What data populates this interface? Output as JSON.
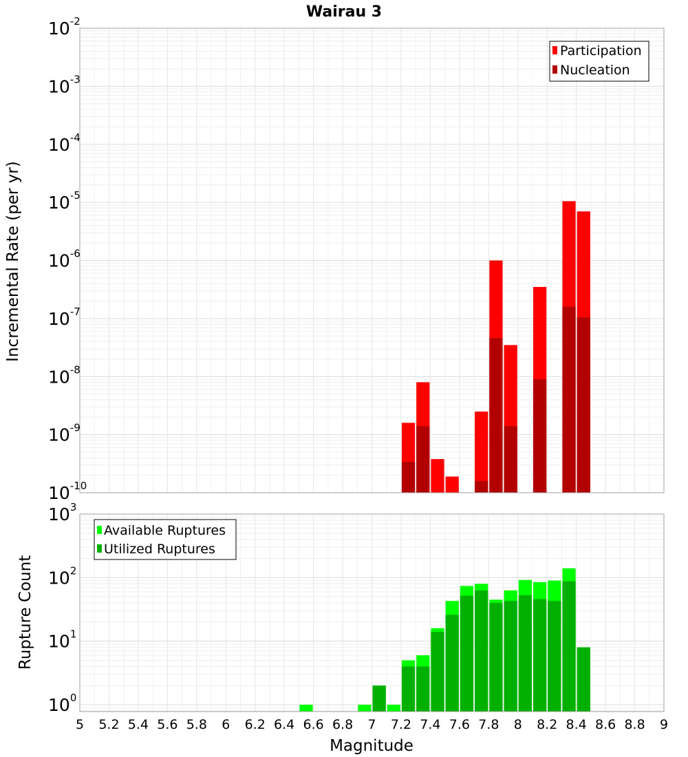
{
  "chart_data": [
    {
      "type": "bar",
      "title": "Wairau 3",
      "xlabel": "",
      "ylabel": "Incremental Rate (per yr)",
      "yscale": "log",
      "xlim": [
        5,
        9
      ],
      "ylim": [
        1e-10,
        0.01
      ],
      "bin_width": 0.1,
      "grid": true,
      "legend_position": "top-right",
      "y_ticks": [
        {
          "value": 1e-10,
          "base": "10",
          "exp": "-10"
        },
        {
          "value": 1e-09,
          "base": "10",
          "exp": "-9"
        },
        {
          "value": 1e-08,
          "base": "10",
          "exp": "-8"
        },
        {
          "value": 1e-07,
          "base": "10",
          "exp": "-7"
        },
        {
          "value": 1e-06,
          "base": "10",
          "exp": "-6"
        },
        {
          "value": 1e-05,
          "base": "10",
          "exp": "-5"
        },
        {
          "value": 0.0001,
          "base": "10",
          "exp": "-4"
        },
        {
          "value": 0.001,
          "base": "10",
          "exp": "-3"
        },
        {
          "value": 0.01,
          "base": "10",
          "exp": "-2"
        }
      ],
      "x": [
        7.25,
        7.35,
        7.45,
        7.55,
        7.75,
        7.85,
        7.95,
        8.15,
        8.35,
        8.45
      ],
      "series": [
        {
          "name": "Participation",
          "color": "#ff0000",
          "values": [
            1.6e-09,
            8e-09,
            3.8e-10,
            1.9e-10,
            2.5e-09,
            1e-06,
            3.5e-08,
            3.5e-07,
            1.05e-05,
            7e-06
          ]
        },
        {
          "name": "Nucleation",
          "color": "#b20000",
          "values": [
            3.4e-10,
            1.4e-09,
            null,
            null,
            1.6e-10,
            4.6e-08,
            1.4e-09,
            9e-09,
            1.6e-07,
            1.05e-07
          ]
        }
      ]
    },
    {
      "type": "bar",
      "title": "",
      "xlabel": "Magnitude",
      "ylabel": "Rupture Count",
      "yscale": "log",
      "xlim": [
        5,
        9
      ],
      "ylim": [
        0.78,
        1000
      ],
      "bin_width": 0.1,
      "grid": true,
      "legend_position": "top-left",
      "x_ticks": [
        "5",
        "5.2",
        "5.4",
        "5.6",
        "5.8",
        "6",
        "6.2",
        "6.4",
        "6.6",
        "6.8",
        "7",
        "7.2",
        "7.4",
        "7.6",
        "7.8",
        "8",
        "8.2",
        "8.4",
        "8.6",
        "8.8",
        "9"
      ],
      "y_ticks": [
        {
          "value": 1,
          "base": "10",
          "exp": "0"
        },
        {
          "value": 10,
          "base": "10",
          "exp": "1"
        },
        {
          "value": 100,
          "base": "10",
          "exp": "2"
        },
        {
          "value": 1000,
          "base": "10",
          "exp": "3"
        }
      ],
      "x": [
        6.55,
        6.95,
        7.05,
        7.15,
        7.25,
        7.35,
        7.45,
        7.55,
        7.65,
        7.75,
        7.85,
        7.95,
        8.05,
        8.15,
        8.25,
        8.35,
        8.45
      ],
      "series": [
        {
          "name": "Available Ruptures",
          "color": "#00ff00",
          "values": [
            1,
            1,
            2,
            1,
            5,
            6,
            16,
            43,
            74,
            80,
            45,
            63,
            92,
            85,
            90,
            140,
            8
          ]
        },
        {
          "name": "Utilized Ruptures",
          "color": "#00b000",
          "values": [
            null,
            null,
            2,
            null,
            4,
            4,
            14,
            26,
            52,
            63,
            40,
            43,
            53,
            46,
            43,
            88,
            8
          ]
        }
      ]
    }
  ]
}
